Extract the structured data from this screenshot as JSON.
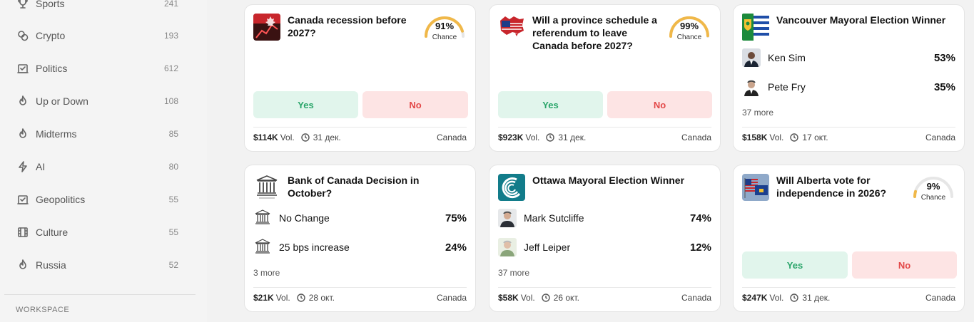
{
  "sidebar": {
    "items": [
      {
        "label": "Sports",
        "count": "241",
        "icon": "trophy-icon"
      },
      {
        "label": "Crypto",
        "count": "193",
        "icon": "coins-icon"
      },
      {
        "label": "Politics",
        "count": "612",
        "icon": "ballot-icon"
      },
      {
        "label": "Up or Down",
        "count": "108",
        "icon": "flame-icon"
      },
      {
        "label": "Midterms",
        "count": "85",
        "icon": "flame-icon"
      },
      {
        "label": "AI",
        "count": "80",
        "icon": "lightning-icon"
      },
      {
        "label": "Geopolitics",
        "count": "55",
        "icon": "ballot-icon"
      },
      {
        "label": "Culture",
        "count": "55",
        "icon": "film-icon"
      },
      {
        "label": "Russia",
        "count": "52",
        "icon": "flame-icon"
      }
    ],
    "section_label": "WORKSPACE"
  },
  "cards": {
    "c1": {
      "title": "Canada recession before 2027?",
      "chance": "91%",
      "chance_label": "Chance",
      "chance_value": 0.91,
      "yes": "Yes",
      "no": "No",
      "vol": "$114K",
      "vol_label": "Vol.",
      "date": "31 дек.",
      "tag": "Canada"
    },
    "c2": {
      "title": "Will a province schedule a referendum to leave Canada before 2027?",
      "chance": "99%",
      "chance_label": "Chance",
      "chance_value": 0.99,
      "yes": "Yes",
      "no": "No",
      "vol": "$923K",
      "vol_label": "Vol.",
      "date": "31 дек.",
      "tag": "Canada"
    },
    "c3": {
      "title": "Vancouver Mayoral Election Winner",
      "options": [
        {
          "name": "Ken Sim",
          "value": "53%"
        },
        {
          "name": "Pete Fry",
          "value": "35%"
        }
      ],
      "more": "37 more",
      "vol": "$158K",
      "vol_label": "Vol.",
      "date": "17 окт.",
      "tag": "Canada"
    },
    "c4": {
      "title": "Bank of Canada Decision in October?",
      "options": [
        {
          "name": "No Change",
          "value": "75%"
        },
        {
          "name": "25 bps increase",
          "value": "24%"
        }
      ],
      "more": "3 more",
      "vol": "$21K",
      "vol_label": "Vol.",
      "date": "28 окт.",
      "tag": "Canada"
    },
    "c5": {
      "title": "Ottawa Mayoral Election Winner",
      "options": [
        {
          "name": "Mark Sutcliffe",
          "value": "74%"
        },
        {
          "name": "Jeff Leiper",
          "value": "12%"
        }
      ],
      "more": "37 more",
      "vol": "$58K",
      "vol_label": "Vol.",
      "date": "26 окт.",
      "tag": "Canada"
    },
    "c6": {
      "title": "Will Alberta vote for independence in 2026?",
      "chance": "9%",
      "chance_label": "Chance",
      "chance_value": 0.09,
      "yes": "Yes",
      "no": "No",
      "vol": "$247K",
      "vol_label": "Vol.",
      "date": "31 дек.",
      "tag": "Canada"
    }
  },
  "colors": {
    "yes_bg": "#e1f5ec",
    "yes_text": "#2aa56a",
    "no_bg": "#fde4e4",
    "no_text": "#e34848",
    "gauge_fill": "#f0b849",
    "gauge_track": "#e6e6e6"
  }
}
